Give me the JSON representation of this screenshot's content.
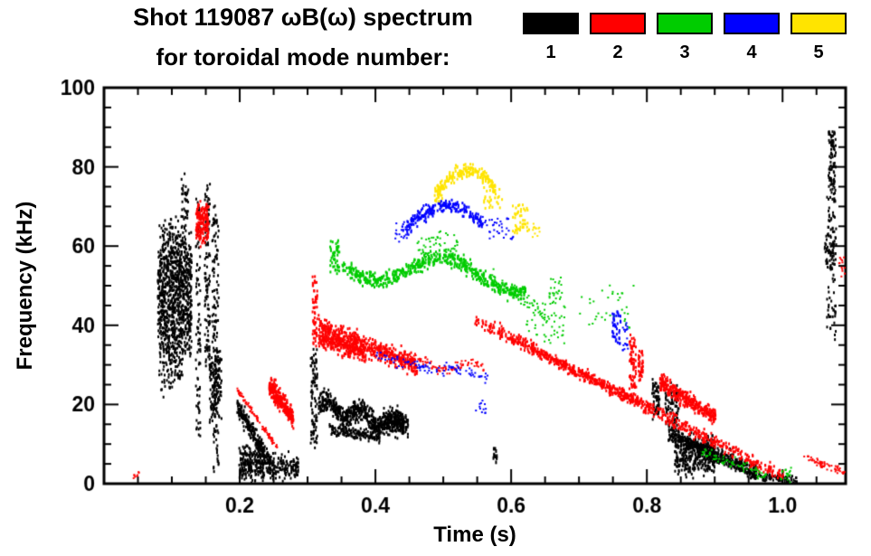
{
  "chart_data": {
    "type": "scatter",
    "title": "Shot 119087 ωB(ω) spectrum",
    "subtitle": "for toroidal mode number:",
    "xlabel": "Time (s)",
    "ylabel": "Frequency (kHz)",
    "xlim": [
      0.0,
      1.093
    ],
    "ylim": [
      0,
      100
    ],
    "xtick_values": [
      0.2,
      0.4,
      0.6,
      0.8,
      1.0
    ],
    "xtick_labels": [
      "0.2",
      "0.4",
      "0.6",
      "0.8",
      "1.0"
    ],
    "x_minor_step": 0.05,
    "ytick_values": [
      0,
      20,
      40,
      60,
      80,
      100
    ],
    "ytick_labels": [
      "0",
      "20",
      "40",
      "60",
      "80",
      "100"
    ],
    "y_minor_step": 5,
    "grid": false,
    "legend_position": "top-right",
    "legend": [
      {
        "label": "1",
        "mode": 1,
        "color": "#000000"
      },
      {
        "label": "2",
        "mode": 2,
        "color": "#ff0000"
      },
      {
        "label": "3",
        "mode": 3,
        "color": "#00cc00"
      },
      {
        "label": "4",
        "mode": 4,
        "color": "#0000ff"
      },
      {
        "label": "5",
        "mode": 5,
        "color": "#ffe400"
      }
    ],
    "clusters": [
      {
        "mode": 1,
        "shape": "patch",
        "t": [
          0.078,
          0.128
        ],
        "f": [
          36,
          60
        ],
        "spread": 5,
        "n": 850
      },
      {
        "mode": 1,
        "shape": "patch",
        "t": [
          0.085,
          0.12
        ],
        "f": [
          57,
          66
        ],
        "spread": 2.5,
        "n": 90
      },
      {
        "mode": 1,
        "shape": "patch",
        "t": [
          0.08,
          0.115
        ],
        "f": [
          26,
          38
        ],
        "spread": 3.5,
        "n": 130
      },
      {
        "mode": 1,
        "shape": "patch",
        "t": [
          0.112,
          0.124
        ],
        "f": [
          68,
          76
        ],
        "spread": 2,
        "n": 35
      },
      {
        "mode": 1,
        "shape": "patch",
        "t": [
          0.134,
          0.141
        ],
        "f": [
          12,
          72
        ],
        "spread": 1.5,
        "n": 90
      },
      {
        "mode": 1,
        "shape": "patch",
        "t": [
          0.147,
          0.155
        ],
        "f": [
          30,
          76
        ],
        "spread": 1.5,
        "n": 110
      },
      {
        "mode": 1,
        "shape": "patch",
        "t": [
          0.158,
          0.168
        ],
        "f": [
          4,
          70
        ],
        "spread": 1.5,
        "n": 150
      },
      {
        "mode": 1,
        "shape": "patch",
        "t": [
          0.154,
          0.172
        ],
        "f": [
          18,
          33
        ],
        "spread": 2.5,
        "n": 130
      },
      {
        "mode": 1,
        "shape": "band",
        "t": [
          0.195,
          0.245
        ],
        "f": [
          20,
          5
        ],
        "spread": 2,
        "n": 240
      },
      {
        "mode": 1,
        "shape": "patch",
        "t": [
          0.198,
          0.235
        ],
        "f": [
          2,
          9
        ],
        "spread": 1.8,
        "n": 220
      },
      {
        "mode": 1,
        "shape": "patch",
        "t": [
          0.238,
          0.285
        ],
        "f": [
          2,
          7
        ],
        "spread": 1.5,
        "n": 140
      },
      {
        "mode": 1,
        "shape": "patch",
        "t": [
          0.303,
          0.313
        ],
        "f": [
          10,
          34
        ],
        "spread": 1.5,
        "n": 90
      },
      {
        "mode": 1,
        "shape": "band",
        "t": [
          0.315,
          0.44
        ],
        "f": [
          20,
          15
        ],
        "spread": 2.2,
        "wave": [
          1.5,
          2.5,
          0
        ],
        "n": 650
      },
      {
        "mode": 1,
        "shape": "band",
        "t": [
          0.33,
          0.405
        ],
        "f": [
          14,
          12
        ],
        "spread": 1.3,
        "n": 140
      },
      {
        "mode": 1,
        "shape": "patch",
        "t": [
          0.415,
          0.447
        ],
        "f": [
          13,
          17
        ],
        "spread": 1.4,
        "n": 130
      },
      {
        "mode": 1,
        "shape": "patch",
        "t": [
          0.572,
          0.578
        ],
        "f": [
          6,
          10
        ],
        "spread": 0.5,
        "n": 12,
        "size": [
          2,
          4
        ]
      },
      {
        "mode": 1,
        "shape": "patch",
        "t": [
          0.806,
          0.818
        ],
        "f": [
          17,
          26
        ],
        "spread": 1.2,
        "n": 60
      },
      {
        "mode": 1,
        "shape": "patch",
        "t": [
          0.825,
          0.846
        ],
        "f": [
          15,
          24
        ],
        "spread": 1.5,
        "n": 80
      },
      {
        "mode": 1,
        "shape": "band",
        "t": [
          0.83,
          0.96
        ],
        "f": [
          13,
          3
        ],
        "spread": 1.8,
        "n": 450
      },
      {
        "mode": 1,
        "shape": "patch",
        "t": [
          0.84,
          0.9
        ],
        "f": [
          4,
          11
        ],
        "spread": 1.8,
        "n": 300
      },
      {
        "mode": 1,
        "shape": "band",
        "t": [
          0.955,
          1.02
        ],
        "f": [
          2.5,
          1
        ],
        "spread": 0.8,
        "n": 90
      },
      {
        "mode": 1,
        "shape": "patch",
        "t": [
          1.064,
          1.078
        ],
        "f": [
          38,
          75
        ],
        "spread": 1.5,
        "n": 90
      },
      {
        "mode": 1,
        "shape": "patch",
        "t": [
          1.066,
          1.077
        ],
        "f": [
          74,
          89
        ],
        "spread": 1.5,
        "n": 90
      },
      {
        "mode": 1,
        "shape": "patch",
        "t": [
          1.06,
          1.075
        ],
        "f": [
          55,
          62
        ],
        "spread": 1.5,
        "n": 40
      },
      {
        "mode": 2,
        "shape": "patch",
        "t": [
          0.134,
          0.153
        ],
        "f": [
          62,
          70
        ],
        "spread": 1.8,
        "n": 170
      },
      {
        "mode": 2,
        "shape": "band",
        "t": [
          0.195,
          0.255
        ],
        "f": [
          24,
          9
        ],
        "spread": 0.7,
        "n": 90,
        "size": [
          2,
          2
        ]
      },
      {
        "mode": 2,
        "shape": "band",
        "t": [
          0.242,
          0.278
        ],
        "f": [
          25,
          17
        ],
        "spread": 2.3,
        "n": 270
      },
      {
        "mode": 2,
        "shape": "patch",
        "t": [
          0.306,
          0.313
        ],
        "f": [
          36,
          54
        ],
        "spread": 1.3,
        "n": 60
      },
      {
        "mode": 2,
        "shape": "band",
        "t": [
          0.315,
          0.46
        ],
        "f": [
          40,
          30
        ],
        "spread": 2.0,
        "n": 520
      },
      {
        "mode": 2,
        "shape": "band",
        "t": [
          0.315,
          0.385
        ],
        "f": [
          37,
          33
        ],
        "spread": 1.8,
        "n": 240
      },
      {
        "mode": 2,
        "shape": "band",
        "t": [
          0.44,
          0.56
        ],
        "f": [
          31,
          29
        ],
        "spread": 1.1,
        "wave": [
          1.5,
          1.5,
          0
        ],
        "n": 90,
        "size": [
          2,
          2
        ]
      },
      {
        "mode": 2,
        "shape": "band",
        "t": [
          0.545,
          1.0
        ],
        "f": [
          42,
          2
        ],
        "spread": 1.4,
        "n": 650
      },
      {
        "mode": 2,
        "shape": "band",
        "t": [
          0.6,
          0.8
        ],
        "f": [
          37,
          20
        ],
        "spread": 1.0,
        "n": 200
      },
      {
        "mode": 2,
        "shape": "patch",
        "t": [
          0.773,
          0.783
        ],
        "f": [
          24,
          37
        ],
        "spread": 1.0,
        "n": 70
      },
      {
        "mode": 2,
        "shape": "patch",
        "t": [
          0.786,
          0.793
        ],
        "f": [
          26,
          34
        ],
        "spread": 0.8,
        "n": 40
      },
      {
        "mode": 2,
        "shape": "band",
        "t": [
          0.818,
          0.9
        ],
        "f": [
          26,
          17
        ],
        "spread": 1.7,
        "n": 330
      },
      {
        "mode": 2,
        "shape": "band",
        "t": [
          1.03,
          1.09
        ],
        "f": [
          7,
          3
        ],
        "spread": 0.9,
        "n": 60,
        "size": [
          2,
          2
        ]
      },
      {
        "mode": 2,
        "shape": "patch",
        "t": [
          1.082,
          1.091
        ],
        "f": [
          53,
          57
        ],
        "spread": 0.8,
        "n": 15,
        "size": [
          2,
          2
        ]
      },
      {
        "mode": 2,
        "shape": "patch",
        "t": [
          0.042,
          0.052
        ],
        "f": [
          1.5,
          3
        ],
        "spread": 0.5,
        "n": 8,
        "size": [
          2,
          2
        ]
      },
      {
        "mode": 3,
        "shape": "patch",
        "t": [
          0.332,
          0.346
        ],
        "f": [
          54,
          62
        ],
        "spread": 1.3,
        "n": 50
      },
      {
        "mode": 3,
        "shape": "band",
        "t": [
          0.35,
          0.62
        ],
        "f": [
          56,
          52
        ],
        "spread": 1.6,
        "wave": [
          3.5,
          1.3,
          3.3
        ],
        "n": 560
      },
      {
        "mode": 3,
        "shape": "patch",
        "t": [
          0.46,
          0.52
        ],
        "f": [
          58,
          63
        ],
        "spread": 1.3,
        "n": 50,
        "size": [
          2,
          2
        ]
      },
      {
        "mode": 3,
        "shape": "band",
        "t": [
          0.57,
          0.66
        ],
        "f": [
          52,
          42
        ],
        "spread": 1.8,
        "n": 80,
        "size": [
          2,
          2
        ]
      },
      {
        "mode": 3,
        "shape": "patch",
        "t": [
          0.62,
          0.68
        ],
        "f": [
          36,
          46
        ],
        "spread": 2.0,
        "n": 45,
        "size": [
          2,
          2
        ]
      },
      {
        "mode": 3,
        "shape": "patch",
        "t": [
          0.7,
          0.78
        ],
        "f": [
          40,
          50
        ],
        "spread": 2.2,
        "n": 35,
        "size": [
          2,
          2
        ]
      },
      {
        "mode": 3,
        "shape": "patch",
        "t": [
          0.655,
          0.678
        ],
        "f": [
          46,
          52
        ],
        "spread": 1.2,
        "n": 25,
        "size": [
          2,
          2
        ]
      },
      {
        "mode": 3,
        "shape": "band",
        "t": [
          0.88,
          0.98
        ],
        "f": [
          8,
          2
        ],
        "spread": 1.1,
        "n": 70,
        "size": [
          2,
          2
        ]
      },
      {
        "mode": 3,
        "shape": "patch",
        "t": [
          0.995,
          1.012
        ],
        "f": [
          1,
          4
        ],
        "spread": 0.8,
        "n": 18,
        "size": [
          2,
          2
        ]
      },
      {
        "mode": 4,
        "shape": "band",
        "t": [
          0.445,
          0.557
        ],
        "f": [
          65,
          66
        ],
        "spread": 1.5,
        "wave": [
          5,
          0.5,
          0
        ],
        "n": 210
      },
      {
        "mode": 4,
        "shape": "patch",
        "t": [
          0.428,
          0.448
        ],
        "f": [
          62,
          66
        ],
        "spread": 1.0,
        "n": 25,
        "size": [
          2,
          2
        ]
      },
      {
        "mode": 4,
        "shape": "band",
        "t": [
          0.4,
          0.5
        ],
        "f": [
          33,
          28
        ],
        "spread": 1.3,
        "n": 55,
        "size": [
          2,
          2
        ]
      },
      {
        "mode": 4,
        "shape": "band",
        "t": [
          0.5,
          0.565
        ],
        "f": [
          30,
          27
        ],
        "spread": 1.1,
        "n": 40,
        "size": [
          2,
          2
        ]
      },
      {
        "mode": 4,
        "shape": "patch",
        "t": [
          0.555,
          0.602
        ],
        "f": [
          62,
          67
        ],
        "spread": 1.3,
        "n": 35,
        "size": [
          2,
          2
        ]
      },
      {
        "mode": 4,
        "shape": "patch",
        "t": [
          0.748,
          0.76
        ],
        "f": [
          36,
          44
        ],
        "spread": 1.3,
        "n": 40
      },
      {
        "mode": 4,
        "shape": "patch",
        "t": [
          0.763,
          0.772
        ],
        "f": [
          34,
          40
        ],
        "spread": 1.0,
        "n": 20,
        "size": [
          2,
          2
        ]
      },
      {
        "mode": 4,
        "shape": "patch",
        "t": [
          0.545,
          0.565
        ],
        "f": [
          18,
          22
        ],
        "spread": 0.8,
        "n": 12,
        "size": [
          2,
          2
        ]
      },
      {
        "mode": 5,
        "shape": "band",
        "t": [
          0.49,
          0.576
        ],
        "f": [
          74,
          75
        ],
        "spread": 1.5,
        "wave": [
          5,
          0.5,
          0
        ],
        "n": 200
      },
      {
        "mode": 5,
        "shape": "patch",
        "t": [
          0.484,
          0.5
        ],
        "f": [
          72,
          76
        ],
        "spread": 1.0,
        "n": 25
      },
      {
        "mode": 5,
        "shape": "patch",
        "t": [
          0.6,
          0.627
        ],
        "f": [
          64,
          70
        ],
        "spread": 1.3,
        "n": 45
      },
      {
        "mode": 5,
        "shape": "patch",
        "t": [
          0.63,
          0.642
        ],
        "f": [
          63,
          66
        ],
        "spread": 0.8,
        "n": 12,
        "size": [
          2,
          2
        ]
      },
      {
        "mode": 5,
        "shape": "patch",
        "t": [
          0.558,
          0.586
        ],
        "f": [
          70,
          74
        ],
        "spread": 1.0,
        "n": 22
      }
    ]
  }
}
